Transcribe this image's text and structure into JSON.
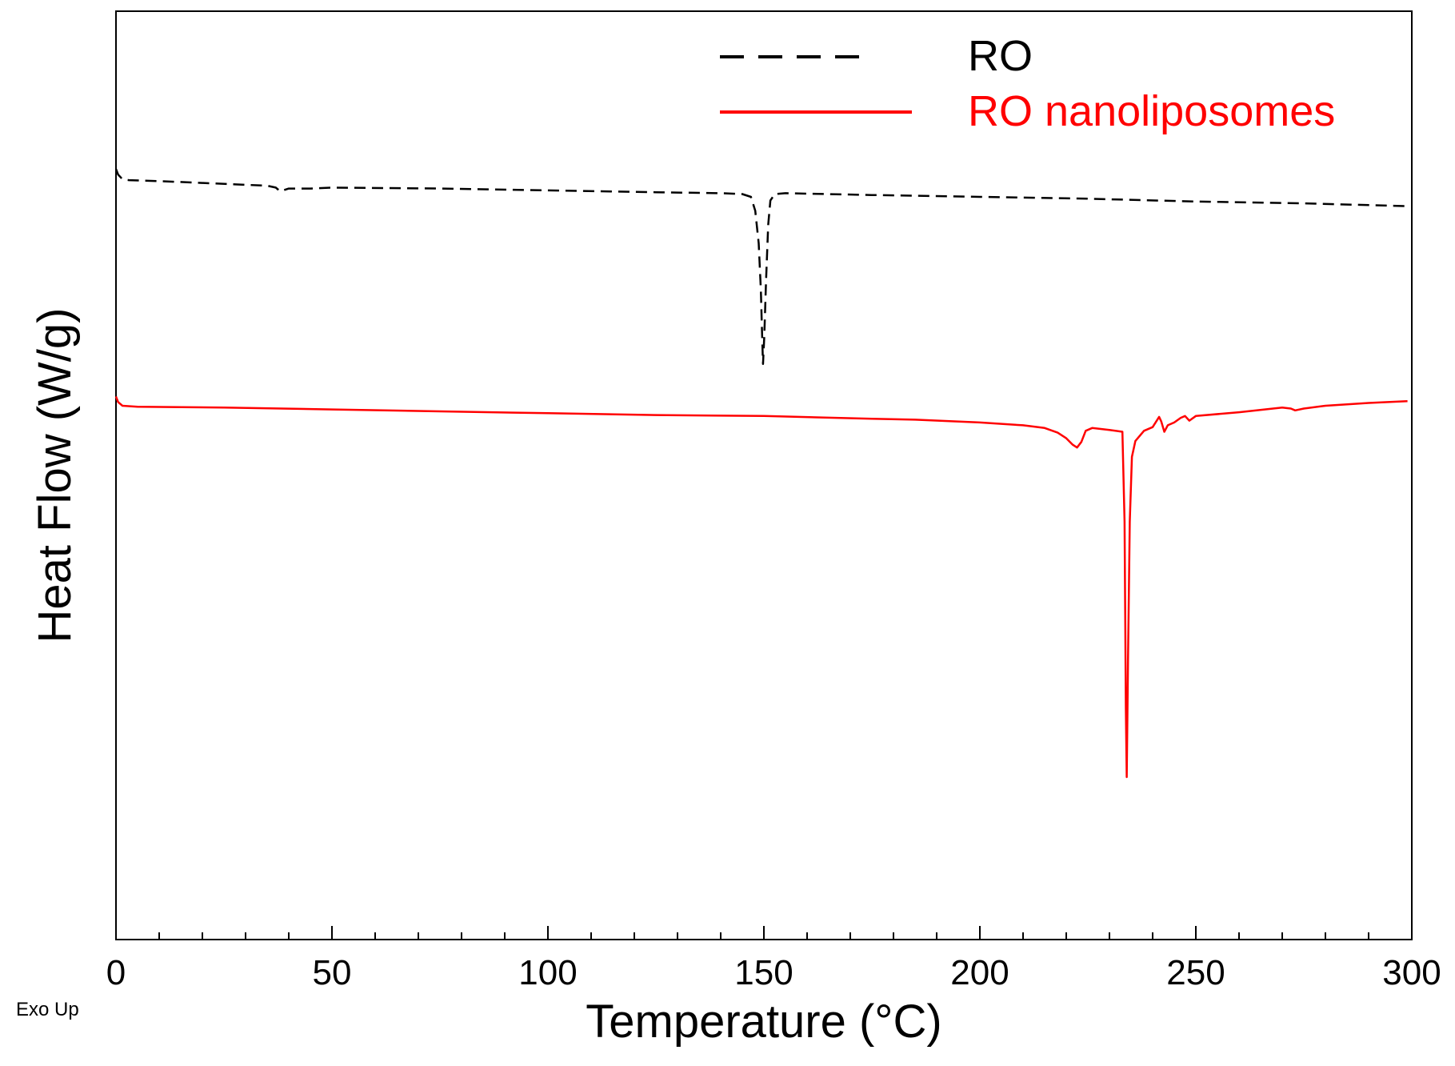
{
  "chart_data": {
    "type": "line",
    "xlabel": "Temperature (°C)",
    "ylabel": "Heat Flow (W/g)",
    "corner_note": "Exo Up",
    "xlim": [
      0,
      300
    ],
    "ylim": [
      0,
      100
    ],
    "x_ticks": [
      0,
      50,
      100,
      150,
      200,
      250,
      300
    ],
    "x_tick_labels": [
      "0",
      "50",
      "100",
      "150",
      "200",
      "250",
      "300"
    ],
    "x_minor_step": 10,
    "y_ticks_labeled": false,
    "grid": false,
    "legend_position": "top-right",
    "series": [
      {
        "name": "RO",
        "color": "#000000",
        "dash": "dashed",
        "points": [
          [
            0,
            83
          ],
          [
            0.5,
            82.4
          ],
          [
            1.5,
            81.9
          ],
          [
            3,
            81.8
          ],
          [
            10,
            81.7
          ],
          [
            20,
            81.5
          ],
          [
            30,
            81.3
          ],
          [
            35,
            81.2
          ],
          [
            37,
            81.0
          ],
          [
            38,
            80.6
          ],
          [
            40,
            80.9
          ],
          [
            45,
            80.9
          ],
          [
            50,
            81.0
          ],
          [
            75,
            80.9
          ],
          [
            100,
            80.7
          ],
          [
            125,
            80.5
          ],
          [
            140,
            80.4
          ],
          [
            145,
            80.3
          ],
          [
            147,
            80.0
          ],
          [
            148,
            78.5
          ],
          [
            148.8,
            75
          ],
          [
            149.3,
            70
          ],
          [
            149.6,
            65
          ],
          [
            149.8,
            62
          ],
          [
            150.1,
            65
          ],
          [
            150.5,
            71
          ],
          [
            151,
            77
          ],
          [
            151.5,
            79.6
          ],
          [
            152.5,
            80.3
          ],
          [
            155,
            80.4
          ],
          [
            175,
            80.2
          ],
          [
            200,
            80.0
          ],
          [
            225,
            79.8
          ],
          [
            250,
            79.5
          ],
          [
            275,
            79.3
          ],
          [
            299,
            79.0
          ]
        ]
      },
      {
        "name": "RO nanoliposomes",
        "color": "#ff0000",
        "dash": "solid",
        "points": [
          [
            0,
            58.5
          ],
          [
            0.5,
            57.9
          ],
          [
            1.5,
            57.5
          ],
          [
            5,
            57.4
          ],
          [
            25,
            57.3
          ],
          [
            50,
            57.1
          ],
          [
            75,
            56.9
          ],
          [
            100,
            56.7
          ],
          [
            125,
            56.5
          ],
          [
            150,
            56.4
          ],
          [
            175,
            56.1
          ],
          [
            185,
            56.0
          ],
          [
            200,
            55.7
          ],
          [
            210,
            55.4
          ],
          [
            215,
            55.1
          ],
          [
            218,
            54.6
          ],
          [
            220,
            54.0
          ],
          [
            221.5,
            53.3
          ],
          [
            222.5,
            53.0
          ],
          [
            223.5,
            53.6
          ],
          [
            224.5,
            54.8
          ],
          [
            226,
            55.1
          ],
          [
            230,
            54.9
          ],
          [
            233,
            54.7
          ],
          [
            233.5,
            45
          ],
          [
            233.8,
            25
          ],
          [
            234,
            17.5
          ],
          [
            234.3,
            30
          ],
          [
            234.7,
            45
          ],
          [
            235.2,
            52
          ],
          [
            236,
            53.7
          ],
          [
            238,
            54.8
          ],
          [
            240,
            55.2
          ],
          [
            241.5,
            56.3
          ],
          [
            242,
            55.8
          ],
          [
            242.7,
            54.7
          ],
          [
            243.5,
            55.4
          ],
          [
            245,
            55.7
          ],
          [
            246.5,
            56.2
          ],
          [
            247.5,
            56.4
          ],
          [
            248.5,
            55.9
          ],
          [
            250,
            56.4
          ],
          [
            260,
            56.8
          ],
          [
            270,
            57.3
          ],
          [
            272,
            57.2
          ],
          [
            273,
            57.0
          ],
          [
            275,
            57.2
          ],
          [
            280,
            57.5
          ],
          [
            290,
            57.8
          ],
          [
            299,
            58.0
          ]
        ]
      }
    ]
  }
}
